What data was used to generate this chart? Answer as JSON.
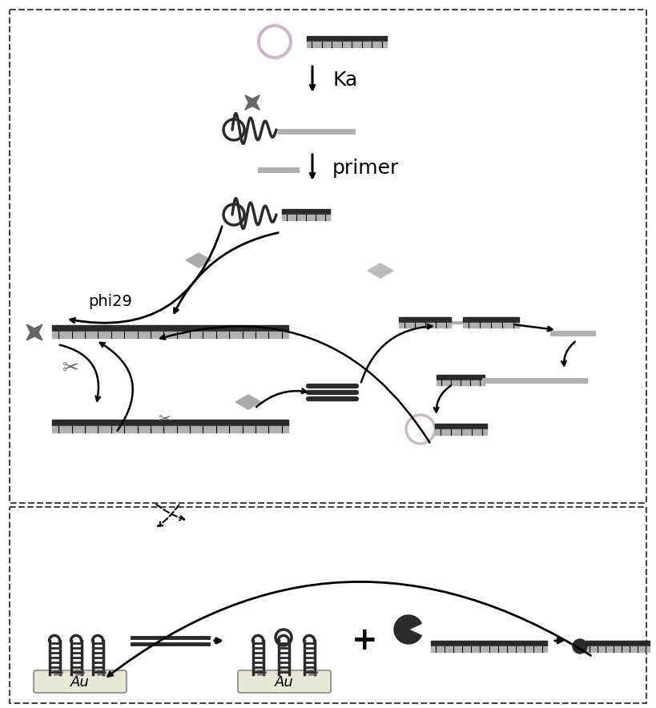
{
  "bg_color": "#ffffff",
  "dark": "#2a2a2a",
  "mid": "#666666",
  "light": "#b0b0b0",
  "pink": "#c8b8c8",
  "diam": "#909090",
  "gold_bg": "#e8e8d8",
  "Ka_label": "Ka",
  "primer_label": "primer",
  "phi29_label": "phi29",
  "Au_label": "Au",
  "figsize": [
    8.19,
    8.84
  ],
  "dpi": 100
}
